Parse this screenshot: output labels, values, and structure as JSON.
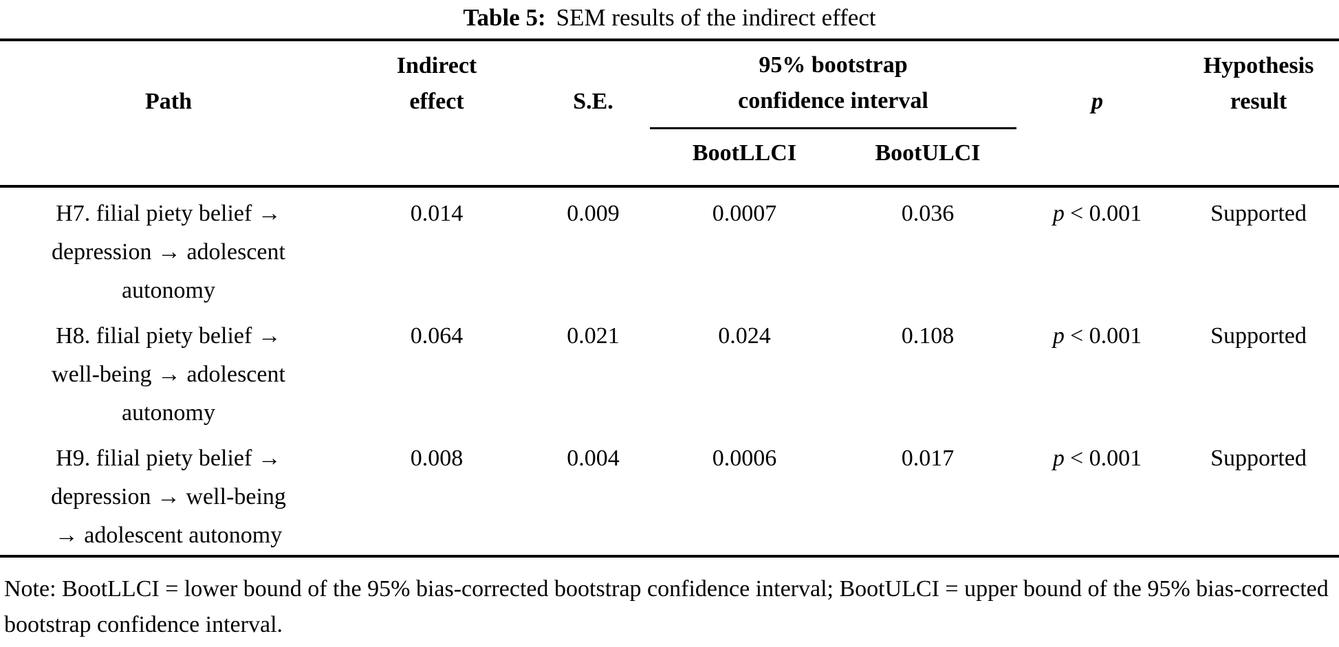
{
  "title": {
    "label": "Table 5:",
    "text": "SEM results of the indirect effect"
  },
  "table": {
    "headers": {
      "path": "Path",
      "indirect_line1": "Indirect",
      "indirect_line2": "effect",
      "se": "S.E.",
      "ci_group_line1": "95% bootstrap",
      "ci_group_line2": "confidence interval",
      "boot_llci": "BootLLCI",
      "boot_ulci": "BootULCI",
      "p": "p",
      "hypothesis_line1": "Hypothesis",
      "hypothesis_line2": "result"
    },
    "rows": [
      {
        "path_lines": [
          "H7. filial piety belief →",
          "depression → adolescent",
          "autonomy"
        ],
        "indirect_effect": "0.014",
        "se": "0.009",
        "boot_llci": "0.0007",
        "boot_ulci": "0.036",
        "p_sym": "p",
        "p_rest": "< 0.001",
        "hypothesis": "Supported"
      },
      {
        "path_lines": [
          "H8. filial piety belief →",
          "well-being → adolescent",
          "autonomy"
        ],
        "indirect_effect": "0.064",
        "se": "0.021",
        "boot_llci": "0.024",
        "boot_ulci": "0.108",
        "p_sym": "p",
        "p_rest": "< 0.001",
        "hypothesis": "Supported"
      },
      {
        "path_lines": [
          "H9. filial piety belief →",
          "depression → well-being",
          "→ adolescent autonomy"
        ],
        "indirect_effect": "0.008",
        "se": "0.004",
        "boot_llci": "0.0006",
        "boot_ulci": "0.017",
        "p_sym": "p",
        "p_rest": "< 0.001",
        "hypothesis": "Supported"
      }
    ]
  },
  "note": {
    "text": "Note: BootLLCI = lower bound of the 95% bias-corrected bootstrap confidence interval; BootULCI = upper bound of the 95% bias-corrected bootstrap confidence interval."
  },
  "colors": {
    "text": "#000000",
    "background": "#ffffff",
    "rule": "#000000"
  }
}
